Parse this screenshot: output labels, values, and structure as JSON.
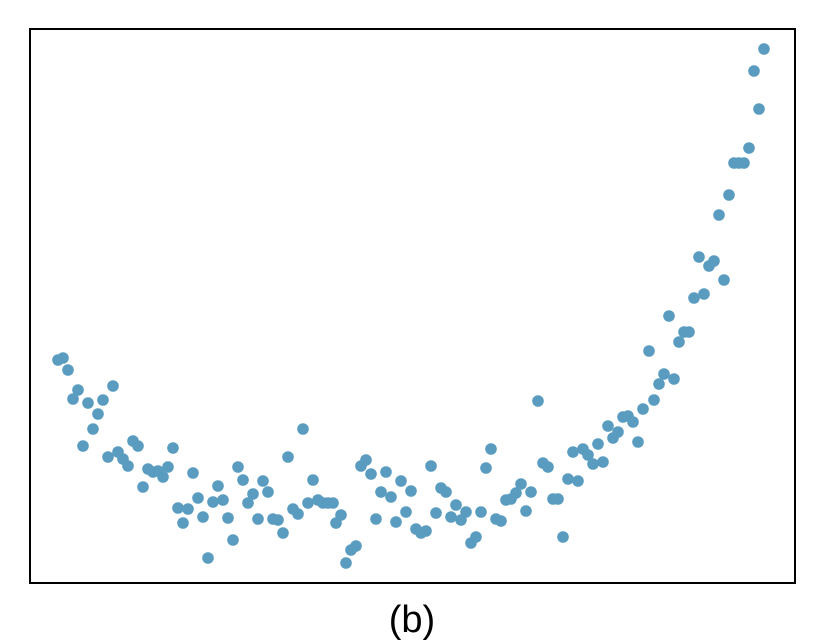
{
  "chart_data": {
    "type": "scatter",
    "title": "(b)",
    "color": "#5a9cc0",
    "xlim": [
      30,
      795
    ],
    "ylim": [
      0,
      554
    ],
    "x": [
      58,
      63,
      68,
      73,
      78,
      83,
      88,
      93,
      98,
      103,
      108,
      113,
      118,
      123,
      128,
      133,
      138,
      143,
      148,
      153,
      158,
      163,
      168,
      173,
      178,
      183,
      188,
      193,
      198,
      203,
      208,
      213,
      218,
      223,
      228,
      233,
      238,
      243,
      248,
      253,
      258,
      263,
      268,
      273,
      278,
      283,
      288,
      293,
      298,
      303,
      308,
      313,
      318,
      323,
      328,
      333,
      336,
      341,
      346,
      351,
      356,
      361,
      366,
      371,
      376,
      381,
      386,
      391,
      396,
      401,
      406,
      411,
      416,
      421,
      426,
      431,
      436,
      441,
      446,
      451,
      456,
      461,
      466,
      471,
      476,
      481,
      486,
      491,
      496,
      501,
      506,
      511,
      516,
      521,
      526,
      531,
      538,
      543,
      548,
      553,
      558,
      563,
      568,
      573,
      578,
      583,
      588,
      593,
      598,
      603,
      608,
      613,
      618,
      623,
      628,
      633,
      638,
      643,
      649,
      654,
      659,
      664,
      669,
      674,
      679,
      684,
      689,
      694,
      699,
      704,
      709,
      714,
      719,
      724,
      729,
      734,
      739,
      744,
      749,
      754,
      759,
      764
    ],
    "values": [
      223,
      225,
      213,
      184,
      193,
      137,
      180,
      154,
      169,
      183,
      126,
      197,
      131,
      124,
      117,
      142,
      137,
      96,
      114,
      111,
      112,
      106,
      116,
      135,
      75,
      60,
      74,
      110,
      85,
      66,
      25,
      81,
      97,
      83,
      65,
      43,
      116,
      103,
      80,
      89,
      64,
      102,
      91,
      64,
      63,
      50,
      126,
      74,
      69,
      154,
      80,
      103,
      83,
      80,
      80,
      80,
      60,
      68,
      20,
      33,
      37,
      117,
      123,
      109,
      64,
      91,
      111,
      86,
      61,
      102,
      71,
      92,
      54,
      50,
      52,
      117,
      70,
      95,
      91,
      66,
      78,
      63,
      71,
      40,
      46,
      71,
      115,
      134,
      64,
      62,
      83,
      84,
      90,
      99,
      72,
      91,
      182,
      120,
      116,
      84,
      84,
      46,
      104,
      131,
      102,
      134,
      128,
      119,
      139,
      121,
      157,
      145,
      151,
      166,
      167,
      161,
      141,
      174,
      232,
      183,
      199,
      209,
      267,
      204,
      241,
      251,
      251,
      285,
      326,
      289,
      317,
      322,
      368,
      303,
      388,
      420,
      420,
      420,
      435,
      512,
      474,
      534
    ]
  }
}
